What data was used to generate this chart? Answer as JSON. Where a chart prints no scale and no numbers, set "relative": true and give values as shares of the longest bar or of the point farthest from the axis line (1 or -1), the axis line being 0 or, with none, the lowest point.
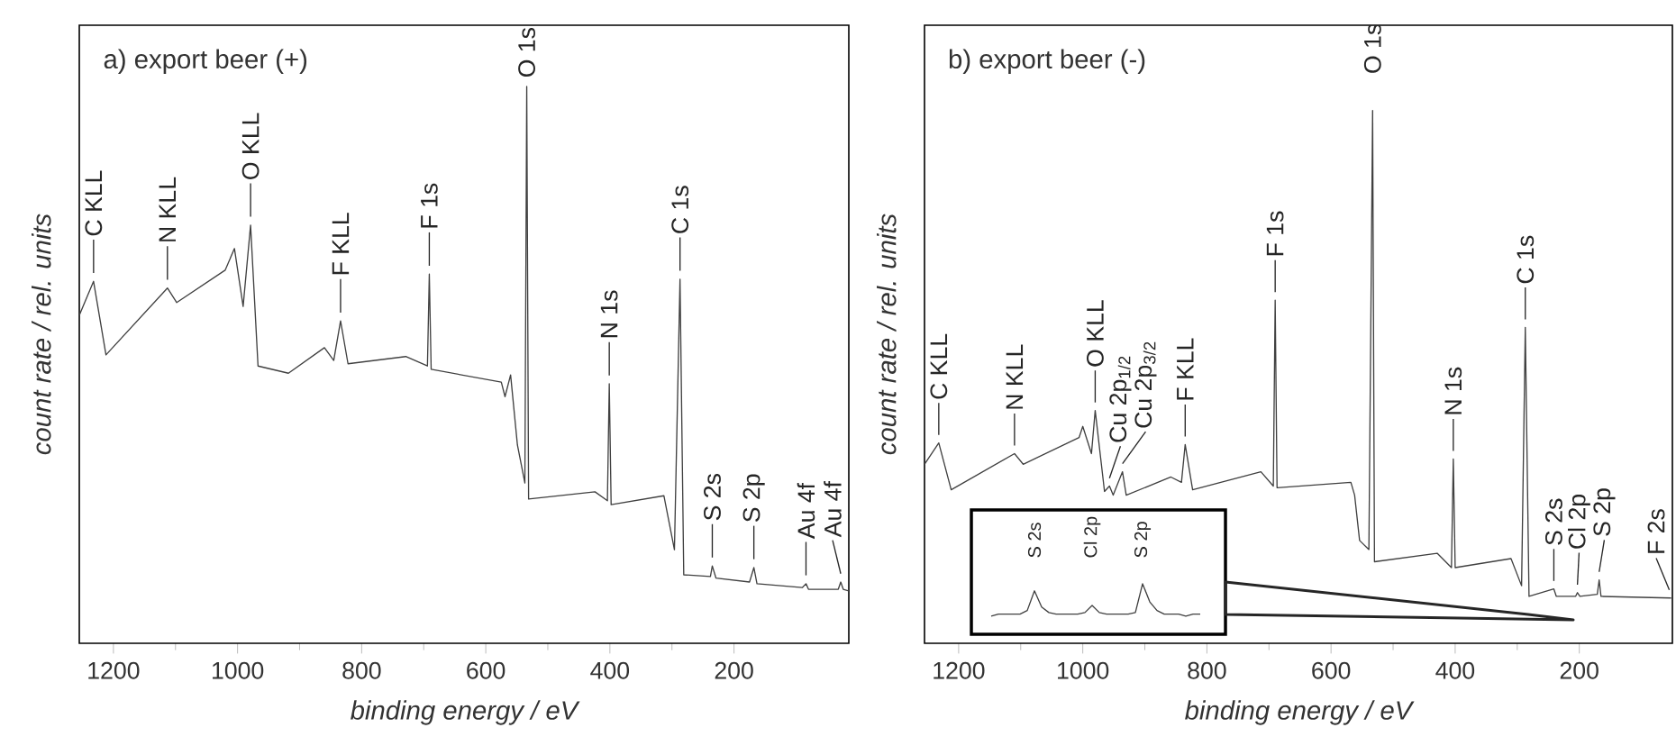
{
  "chart_data": [
    {
      "type": "line",
      "title": "a) export beer (+)",
      "xlabel": "binding energy / eV",
      "ylabel": "count rate / rel. units",
      "relative": true,
      "color": "#404040",
      "xlim": [
        1255,
        15
      ],
      "xticks": [
        1200,
        1000,
        800,
        600,
        400,
        200
      ],
      "x": [
        1255,
        1232,
        1212,
        1113,
        1098,
        1020,
        1005,
        991,
        979,
        967,
        918,
        860,
        845,
        834,
        822,
        729,
        694,
        691,
        688,
        575,
        569,
        560,
        549,
        537,
        534,
        531,
        424,
        404,
        401,
        398,
        313,
        296,
        287,
        281,
        238,
        235,
        229,
        175,
        168,
        163,
        90,
        84,
        80,
        32,
        28,
        24,
        15
      ],
      "values": [
        0.589,
        0.65,
        0.518,
        0.638,
        0.612,
        0.67,
        0.709,
        0.605,
        0.751,
        0.498,
        0.485,
        0.531,
        0.508,
        0.579,
        0.502,
        0.515,
        0.498,
        0.663,
        0.492,
        0.469,
        0.443,
        0.482,
        0.356,
        0.288,
        1.0,
        0.259,
        0.272,
        0.256,
        0.466,
        0.249,
        0.265,
        0.168,
        0.654,
        0.123,
        0.12,
        0.139,
        0.117,
        0.11,
        0.136,
        0.107,
        0.1,
        0.107,
        0.097,
        0.097,
        0.11,
        0.097,
        0.094
      ],
      "annotations": [
        {
          "text": "C KLL",
          "x": 1232,
          "y": 0.65
        },
        {
          "text": "N KLL",
          "x": 1113,
          "y": 0.638
        },
        {
          "text": "O KLL",
          "x": 979,
          "y": 0.751
        },
        {
          "text": "F KLL",
          "x": 834,
          "y": 0.579
        },
        {
          "text": "F 1s",
          "x": 691,
          "y": 0.663
        },
        {
          "text": "O 1s",
          "x": 534,
          "y": 1.0
        },
        {
          "text": "N 1s",
          "x": 401,
          "y": 0.466
        },
        {
          "text": "C 1s",
          "x": 287,
          "y": 0.654
        },
        {
          "text": "S 2s",
          "x": 235,
          "y": 0.139
        },
        {
          "text": "S 2p",
          "x": 168,
          "y": 0.136
        },
        {
          "text": "Au 4f",
          "x": 84,
          "y": 0.107
        },
        {
          "text": "Au 4f",
          "x": 28,
          "y": 0.11
        }
      ]
    },
    {
      "type": "line",
      "title": "b) export beer (-)",
      "xlabel": "binding energy / eV",
      "ylabel": "count rate / rel. units",
      "relative": true,
      "color": "#404040",
      "xlim": [
        1255,
        50
      ],
      "xticks": [
        1200,
        1000,
        800,
        600,
        400,
        200
      ],
      "x": [
        1255,
        1232,
        1212,
        1110,
        1096,
        1006,
        1000,
        986,
        980,
        965,
        957,
        951,
        936,
        930,
        858,
        841,
        835,
        823,
        713,
        693,
        690,
        687,
        568,
        562,
        554,
        539,
        533,
        530,
        429,
        406,
        403,
        400,
        310,
        293,
        287,
        281,
        241,
        237,
        206,
        203,
        199,
        171,
        168,
        165,
        52
      ],
      "values": [
        0.336,
        0.376,
        0.288,
        0.356,
        0.336,
        0.386,
        0.407,
        0.356,
        0.437,
        0.285,
        0.295,
        0.278,
        0.322,
        0.278,
        0.312,
        0.302,
        0.373,
        0.288,
        0.322,
        0.295,
        0.644,
        0.292,
        0.302,
        0.278,
        0.193,
        0.176,
        1.0,
        0.153,
        0.169,
        0.142,
        0.346,
        0.142,
        0.159,
        0.108,
        0.593,
        0.088,
        0.102,
        0.088,
        0.088,
        0.095,
        0.088,
        0.092,
        0.119,
        0.088,
        0.085
      ],
      "annotations": [
        {
          "text": "C KLL",
          "x": 1232,
          "y": 0.376
        },
        {
          "text": "N KLL",
          "x": 1110,
          "y": 0.356
        },
        {
          "text": "O KLL",
          "x": 980,
          "y": 0.437
        },
        {
          "text": "Cu 2p$_{1/2}$",
          "x": 957,
          "y": 0.295
        },
        {
          "text": "Cu 2p$_{3/2}$",
          "x": 936,
          "y": 0.322
        },
        {
          "text": "F KLL",
          "x": 835,
          "y": 0.373
        },
        {
          "text": "F 1s",
          "x": 690,
          "y": 0.644
        },
        {
          "text": "O 1s",
          "x": 533,
          "y": 1.0
        },
        {
          "text": "N 1s",
          "x": 403,
          "y": 0.346
        },
        {
          "text": "C 1s",
          "x": 287,
          "y": 0.593
        },
        {
          "text": "S 2s",
          "x": 241,
          "y": 0.102
        },
        {
          "text": "Cl 2p",
          "x": 203,
          "y": 0.095
        },
        {
          "text": "S 2p",
          "x": 168,
          "y": 0.119
        },
        {
          "text": "F 2s",
          "x": 55,
          "y": 0.085
        }
      ]
    },
    {
      "type": "line",
      "relative": true,
      "color": "#404040",
      "categories": [
        null,
        null,
        null,
        null,
        null,
        null,
        null,
        null,
        null,
        null,
        null,
        null,
        null,
        null,
        null,
        null,
        null,
        null,
        null,
        null,
        null,
        null,
        null,
        null,
        null,
        null,
        null,
        null,
        null,
        null
      ],
      "values": [
        0.36,
        0.4,
        0.4,
        0.4,
        0.4,
        0.47,
        0.86,
        0.54,
        0.43,
        0.4,
        0.4,
        0.4,
        0.4,
        0.43,
        0.57,
        0.43,
        0.4,
        0.4,
        0.4,
        0.4,
        0.43,
        1,
        0.64,
        0.47,
        0.4,
        0.4,
        0.4,
        0.36,
        0.4,
        0.4
      ],
      "annotations": [
        "S 2s",
        "Cl 2p",
        "S 2p"
      ]
    }
  ]
}
